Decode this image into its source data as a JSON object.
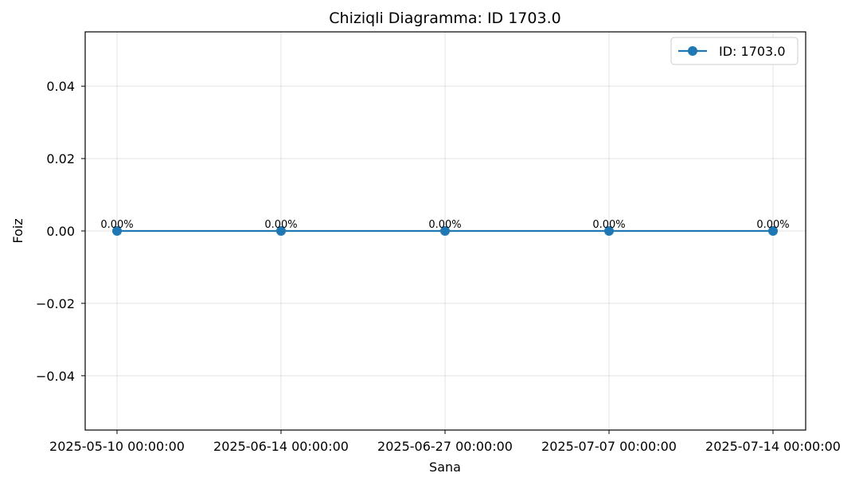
{
  "chart_data": {
    "type": "line",
    "title": "Chiziqli Diagramma: ID 1703.0",
    "xlabel": "Sana",
    "ylabel": "Foiz",
    "categories": [
      "2025-05-10 00:00:00",
      "2025-06-14 00:00:00",
      "2025-06-27 00:00:00",
      "2025-07-07 00:00:00",
      "2025-07-14 00:00:00"
    ],
    "series": [
      {
        "name": "ID: 1703.0",
        "values": [
          0,
          0,
          0,
          0,
          0
        ],
        "labels": [
          "0.00%",
          "0.00%",
          "0.00%",
          "0.00%",
          "0.00%"
        ],
        "color": "#1f77b4"
      }
    ],
    "ylim": [
      -0.055,
      0.055
    ],
    "yticks": [
      -0.04,
      -0.02,
      0.0,
      0.02,
      0.04
    ],
    "ytick_labels": [
      "−0.04",
      "−0.02",
      "0.00",
      "0.02",
      "0.04"
    ],
    "grid": true,
    "legend_position": "top-right"
  }
}
